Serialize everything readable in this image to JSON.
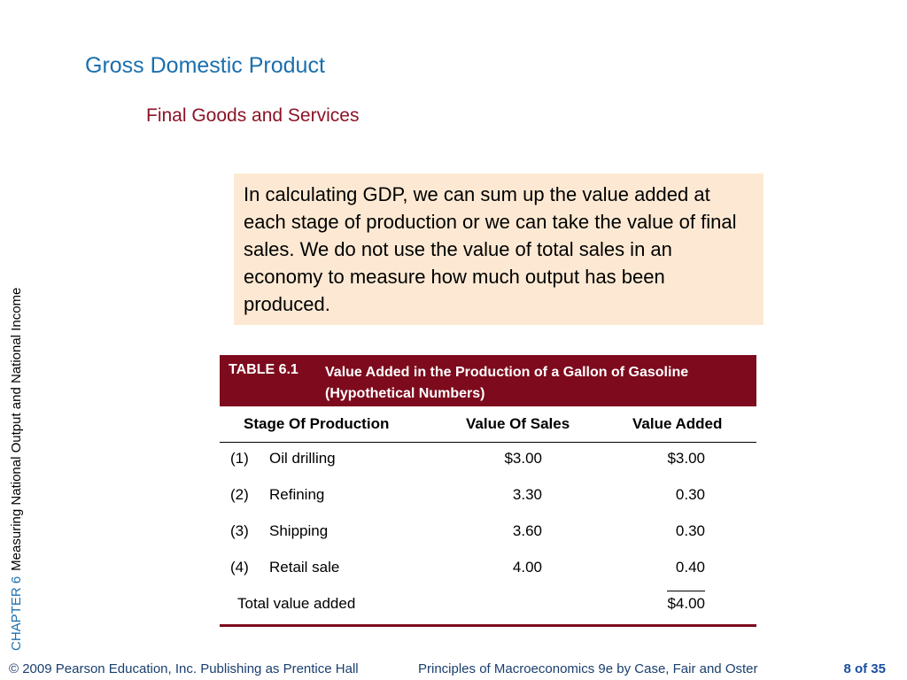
{
  "slide": {
    "title": "Gross Domestic Product",
    "subtitle": "Final Goods and Services",
    "chapter_label": "CHAPTER 6",
    "chapter_title": "Measuring National Output and National Income",
    "note": "In calculating GDP, we can sum up the value added at each stage of production or we can take the value of final sales.  We do not use the value of total sales in an economy to measure how much output has been produced."
  },
  "table": {
    "number": "TABLE 6.1",
    "title": "Value Added in the Production of a Gallon of Gasoline (Hypothetical Numbers)",
    "columns": [
      "Stage Of Production",
      "Value Of Sales",
      "Value Added"
    ],
    "rows": [
      {
        "num": "(1)",
        "stage": "Oil drilling",
        "sales": "$3.00",
        "added": "$3.00"
      },
      {
        "num": "(2)",
        "stage": "Refining",
        "sales": "3.30",
        "added": "0.30"
      },
      {
        "num": "(3)",
        "stage": "Shipping",
        "sales": "3.60",
        "added": "0.30"
      },
      {
        "num": "(4)",
        "stage": "Retail sale",
        "sales": "4.00",
        "added": "0.40"
      }
    ],
    "total_label": "Total value added",
    "total_value": "$4.00"
  },
  "footer": {
    "copyright": "© 2009 Pearson Education, Inc. Publishing as Prentice Hall",
    "book": "Principles of Macroeconomics 9e by Case, Fair and Oster",
    "page": "8 of 35"
  },
  "colors": {
    "title": "#1a6fae",
    "subtitle": "#8b1327",
    "table_header": "#7d0b1d",
    "note_background": "#fde9d3"
  }
}
